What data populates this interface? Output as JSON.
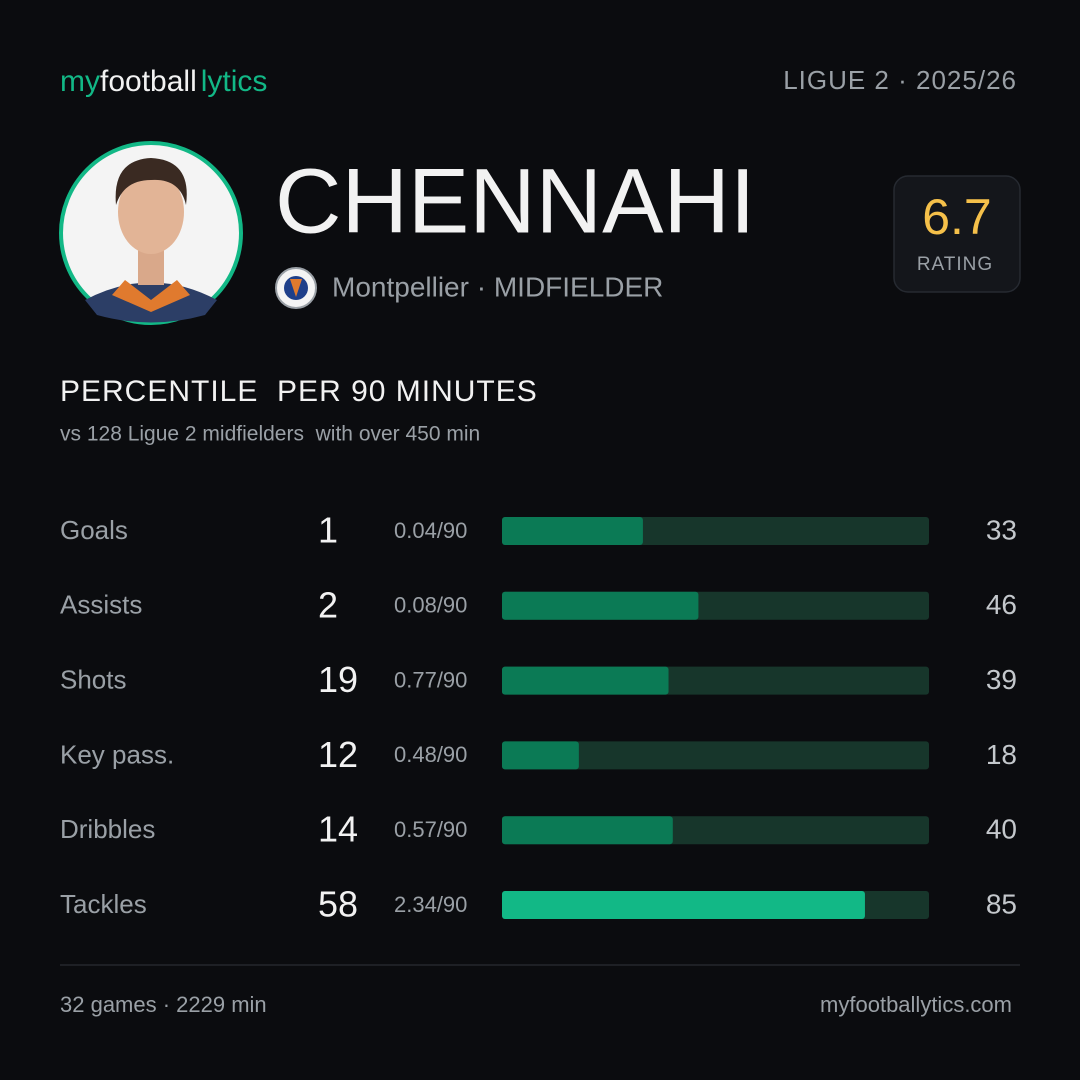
{
  "brand": [
    "my",
    "football",
    "lytics"
  ],
  "league": "LIGUE 2 · 2025/26",
  "player": {
    "name": "CHENNAHI",
    "meta": "Montpellier · MIDFIELDER",
    "rating": 6.7,
    "rating_label": "RATING"
  },
  "section": {
    "title": "PERCENTILE  PER 90 MINUTES",
    "subtitle": "vs 128 Ligue 2 midfielders  with over 450 min"
  },
  "stats": {
    "xlim": [
      0,
      100
    ],
    "track_color": "#17362b",
    "rows": [
      {
        "label": "Goals",
        "count": 1,
        "per90": "0.04/90",
        "percentile": 33,
        "color": "#0b7a55"
      },
      {
        "label": "Assists",
        "count": 2,
        "per90": "0.08/90",
        "percentile": 46,
        "color": "#0b7a55"
      },
      {
        "label": "Shots",
        "count": 19,
        "per90": "0.77/90",
        "percentile": 39,
        "color": "#0b7a55"
      },
      {
        "label": "Key pass.",
        "count": 12,
        "per90": "0.48/90",
        "percentile": 18,
        "color": "#0b7a55"
      },
      {
        "label": "Dribbles",
        "count": 14,
        "per90": "0.57/90",
        "percentile": 40,
        "color": "#0b7a55"
      },
      {
        "label": "Tackles",
        "count": 58,
        "per90": "2.34/90",
        "percentile": 85,
        "color": "#12b886"
      }
    ]
  },
  "footer": {
    "left": "32 games · 2229 min",
    "right": "myfootballytics.com"
  }
}
